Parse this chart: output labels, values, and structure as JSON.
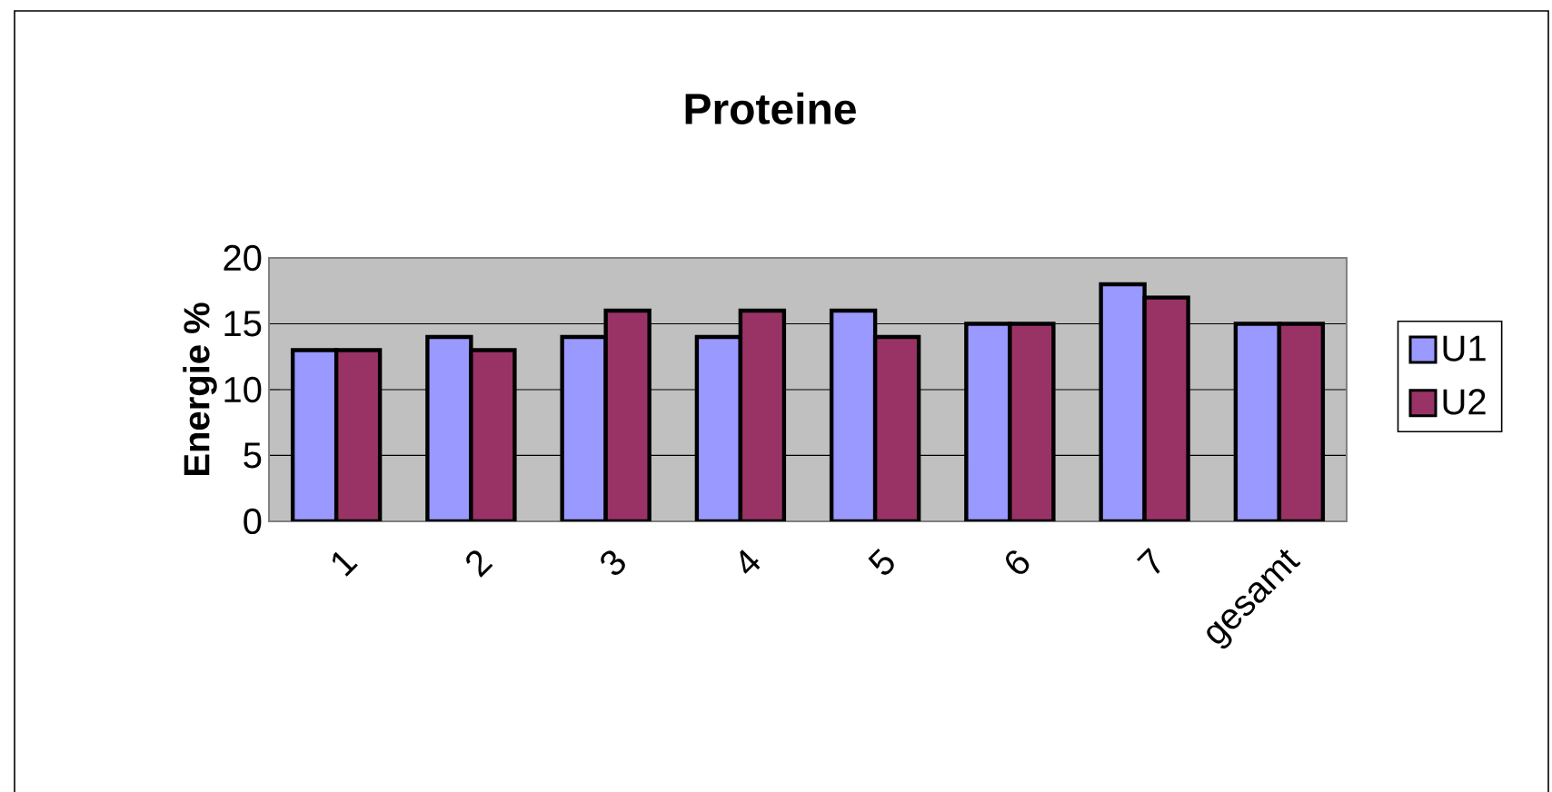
{
  "chart_data": {
    "type": "bar",
    "title": "Proteine",
    "ylabel": "Energie %",
    "categories": [
      "1",
      "2",
      "3",
      "4",
      "5",
      "6",
      "7",
      "gesamt"
    ],
    "series": [
      {
        "name": "U1",
        "color": "#9999ff",
        "values": [
          13,
          14,
          14,
          14,
          16,
          15,
          18,
          15
        ]
      },
      {
        "name": "U2",
        "color": "#993366",
        "values": [
          13,
          13,
          16,
          16,
          14,
          15,
          17,
          15
        ]
      }
    ],
    "ylim": [
      0,
      20
    ],
    "yticks": [
      0,
      5,
      10,
      15,
      20
    ],
    "grid": "y",
    "legend": "right"
  }
}
